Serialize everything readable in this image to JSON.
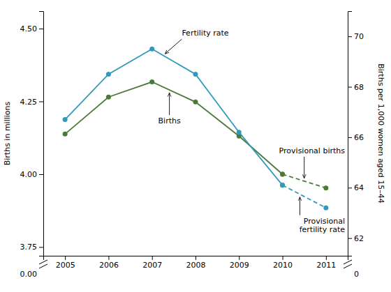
{
  "chart_data": {
    "type": "line",
    "x": [
      2005,
      2006,
      2007,
      2008,
      2009,
      2010,
      2011
    ],
    "xlim": [
      2004.5,
      2011.5
    ],
    "xticks": [
      2005,
      2006,
      2007,
      2008,
      2009,
      2010,
      2011
    ],
    "ylabel": "Births in millions",
    "y2label": "Births per 1,000 women aged 15–44",
    "ylim": [
      3.72,
      4.56
    ],
    "yticks": [
      3.75,
      {
        "value": 4.0,
        "label": "4.00"
      },
      4.25,
      {
        "value": 4.5,
        "label": "4.50"
      }
    ],
    "y2lim": [
      61.3,
      71.0
    ],
    "y2ticks": [
      62,
      64,
      66,
      68,
      70
    ],
    "series": [
      {
        "color": "#4a7a3a",
        "line_style": "solid",
        "marker": "circle",
        "values": [
          4.138,
          4.265,
          4.317,
          4.248,
          4.131,
          4.0,
          null
        ]
      },
      {
        "color": "#4a7a3a",
        "line_style": "dashed",
        "marker": "circle",
        "values": [
          null,
          null,
          null,
          null,
          null,
          4.0,
          3.953
        ]
      },
      {
        "color": "#3399bb",
        "line_style": "solid",
        "marker": "circle",
        "axis": "y2",
        "values": [
          66.7,
          68.5,
          69.5,
          68.5,
          66.2,
          64.1,
          null
        ]
      },
      {
        "color": "#3399bb",
        "line_style": "dashed",
        "marker": "circle",
        "axis": "y2",
        "values": [
          null,
          null,
          null,
          null,
          null,
          64.1,
          63.2
        ]
      }
    ],
    "annotations": [
      "Fertility rate",
      "Births",
      "Provisional births",
      "Provisional\nfertility rate",
      "0.00",
      "0"
    ]
  }
}
